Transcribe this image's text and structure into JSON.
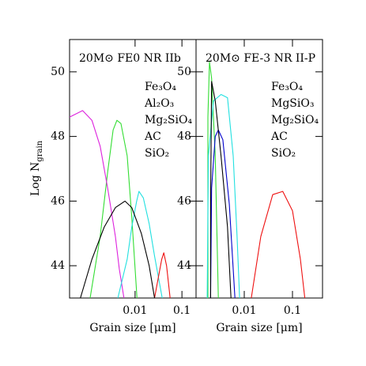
{
  "chart_data": [
    {
      "type": "line",
      "title": "20M⊙ FE0 NR IIb",
      "x_label": "Grain size [μm]",
      "y_label": "Log N",
      "y_label_sub": "grain",
      "log_x": true,
      "xlim": [
        0.0004,
        0.2
      ],
      "ylim": [
        43,
        51
      ],
      "xticks": [
        0.01,
        0.1
      ],
      "yticks": [
        44,
        46,
        48,
        50
      ],
      "series": [
        {
          "name": "Fe₃O₄",
          "color": "#33dd33",
          "x": [
            0.0011,
            0.0018,
            0.0026,
            0.0034,
            0.0041,
            0.005,
            0.0068,
            0.0085,
            0.011
          ],
          "values": [
            43,
            44.9,
            46.9,
            48.2,
            48.5,
            48.4,
            47.4,
            45.5,
            43
          ]
        },
        {
          "name": "Al₂O₃",
          "color": "#dd22dd",
          "x": [
            0.0004,
            0.00076,
            0.0012,
            0.0018,
            0.0026,
            0.0038,
            0.0046,
            0.0058
          ],
          "values": [
            48.6,
            48.8,
            48.5,
            47.7,
            46.4,
            44.9,
            43.9,
            43
          ]
        },
        {
          "name": "Mg₂SiO₄",
          "color": "#22e0e0",
          "x": [
            0.0043,
            0.0068,
            0.0085,
            0.0108,
            0.0121,
            0.015,
            0.02,
            0.026,
            0.038
          ],
          "values": [
            43,
            44.2,
            45.2,
            46.0,
            46.3,
            46.1,
            45.3,
            44.3,
            43
          ]
        },
        {
          "name": "AC",
          "color": "#ee1111",
          "x": [
            0.026,
            0.032,
            0.037,
            0.041,
            0.047,
            0.056
          ],
          "values": [
            43,
            43.7,
            44.2,
            44.4,
            44.0,
            43
          ]
        },
        {
          "name": "SiO₂",
          "color": "#000000",
          "x": [
            0.00068,
            0.0012,
            0.0022,
            0.0038,
            0.0061,
            0.0085,
            0.0136,
            0.02,
            0.026
          ],
          "values": [
            43,
            44.2,
            45.2,
            45.8,
            46.0,
            45.8,
            45.0,
            44.0,
            43
          ]
        }
      ]
    },
    {
      "type": "line",
      "title": "20M⊙ FE-3 NR II-P",
      "x_label": "Grain size [μm]",
      "log_x": true,
      "xlim": [
        0.001,
        0.42
      ],
      "ylim": [
        43,
        51
      ],
      "xticks": [
        0.01,
        0.1
      ],
      "yticks": [
        44,
        46,
        48,
        50
      ],
      "series": [
        {
          "name": "Fe₃O₄",
          "color": "#33dd33",
          "x": [
            0.00176,
            0.00176,
            0.0019,
            0.0021,
            0.0025,
            0.0029
          ],
          "values": [
            43,
            48.6,
            50.3,
            49.8,
            47.4,
            43
          ]
        },
        {
          "name": "MgSiO₃",
          "color": "#0000cc",
          "x": [
            0.002,
            0.0021,
            0.0025,
            0.0029,
            0.0036,
            0.0049,
            0.0064
          ],
          "values": [
            43,
            46.4,
            48.0,
            48.2,
            47.9,
            45.9,
            43
          ]
        },
        {
          "name": "Mg₂SiO₄",
          "color": "#22e0e0",
          "x": [
            0.0017,
            0.0018,
            0.0023,
            0.0033,
            0.0045,
            0.0059,
            0.0071,
            0.008
          ],
          "values": [
            43,
            47.4,
            49.1,
            49.3,
            49.2,
            47.4,
            44.9,
            43
          ]
        },
        {
          "name": "AC",
          "color": "#ee1111",
          "x": [
            0.014,
            0.022,
            0.039,
            0.063,
            0.1,
            0.146,
            0.18
          ],
          "values": [
            43,
            44.9,
            46.2,
            46.3,
            45.7,
            44.2,
            43
          ]
        },
        {
          "name": "SiO₂",
          "color": "#000000",
          "x": [
            0.002,
            0.002,
            0.0021,
            0.0025,
            0.0033,
            0.0045,
            0.0053
          ],
          "values": [
            43,
            45.9,
            49.7,
            49.1,
            47.4,
            45.2,
            43
          ]
        }
      ]
    }
  ]
}
